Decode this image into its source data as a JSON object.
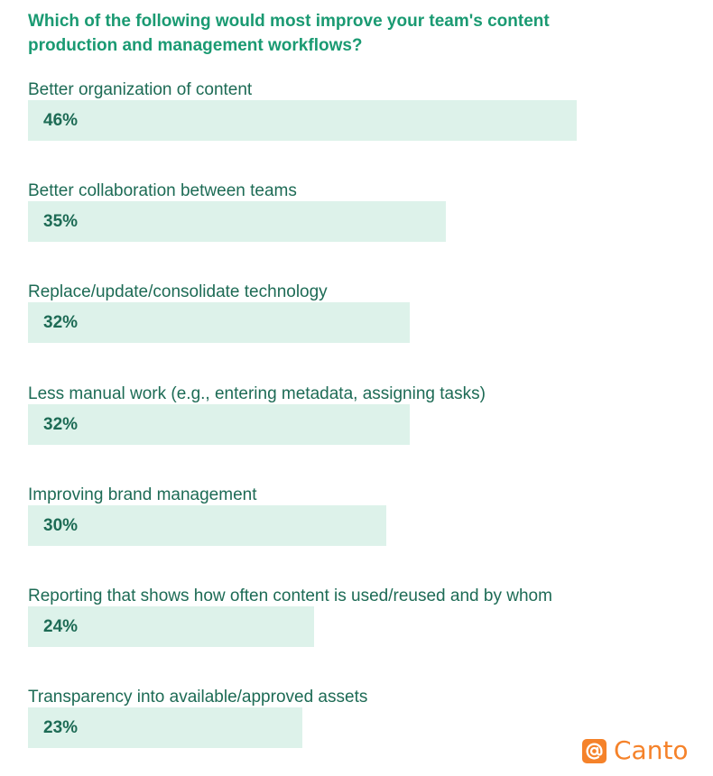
{
  "chart_data": {
    "type": "bar",
    "orientation": "horizontal",
    "title": "Which of the following would most improve your team's content production and management workflows?",
    "categories": [
      "Better organization of content",
      "Better collaboration between teams",
      "Replace/update/consolidate technology",
      "Less manual work (e.g., entering metadata, assigning tasks)",
      "Improving brand management",
      "Reporting that shows how often content is used/reused and by whom",
      "Transparency into available/approved assets"
    ],
    "values": [
      46,
      35,
      32,
      32,
      30,
      24,
      23
    ],
    "value_labels": [
      "46%",
      "35%",
      "32%",
      "32%",
      "30%",
      "24%",
      "23%"
    ],
    "unit": "%",
    "grid": false,
    "legend": "none",
    "colors": {
      "bar_fill": "#ddf2ea",
      "title": "#1a9a72",
      "text": "#1d6b55",
      "brand": "#f5822a"
    }
  },
  "brand": {
    "logo_text": "Canto",
    "logo_icon": "at-sign-icon"
  }
}
